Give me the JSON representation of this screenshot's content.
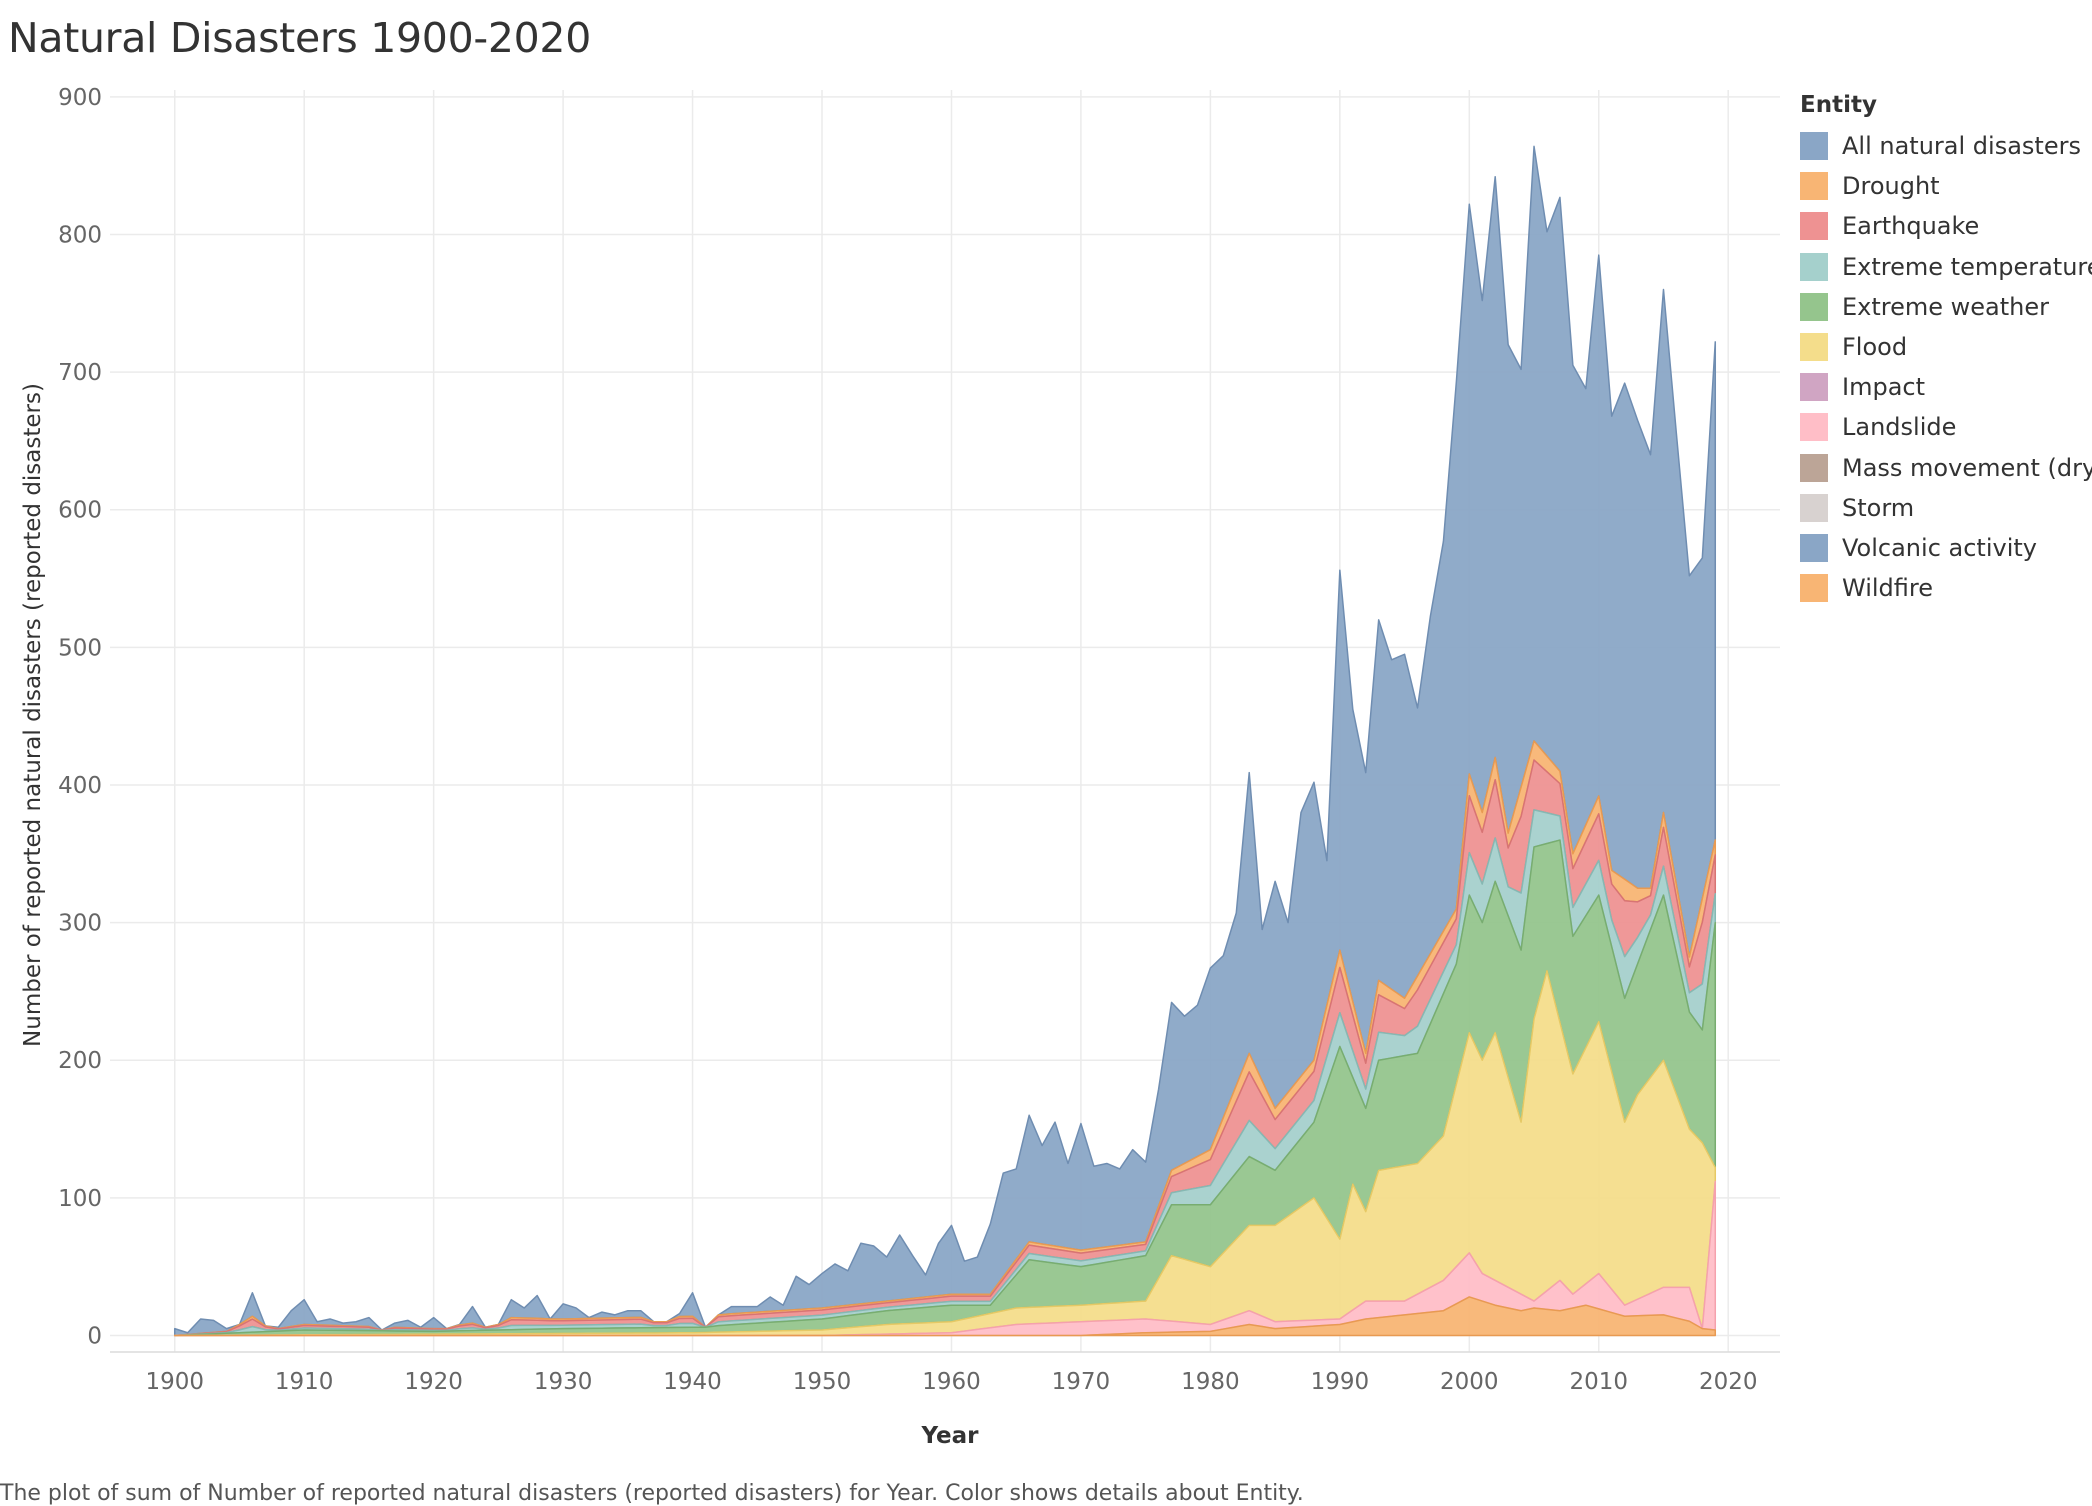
{
  "chart_data": {
    "type": "area",
    "title": "Natural Disasters 1900-2020",
    "xlabel": "Year",
    "ylabel": "Number of reported natural disasters (reported disasters)",
    "caption": "The plot of sum of Number of reported natural disasters (reported disasters) for Year.  Color shows details about Entity.",
    "legend_title": "Entity",
    "legend_position": "right",
    "grid": true,
    "xlim": [
      1895,
      2024
    ],
    "ylim": [
      -12,
      905
    ],
    "x_ticks": [
      1900,
      1910,
      1920,
      1930,
      1940,
      1950,
      1960,
      1970,
      1980,
      1990,
      2000,
      2010,
      2020
    ],
    "y_ticks": [
      0,
      100,
      200,
      300,
      400,
      500,
      600,
      700,
      800,
      900
    ],
    "keypoints": {
      "all_natural_disasters": [
        [
          1900,
          5
        ],
        [
          1901,
          2
        ],
        [
          1902,
          12
        ],
        [
          1903,
          11
        ],
        [
          1904,
          5
        ],
        [
          1905,
          8
        ],
        [
          1906,
          31
        ],
        [
          1907,
          7
        ],
        [
          1908,
          6
        ],
        [
          1909,
          18
        ],
        [
          1910,
          26
        ],
        [
          1911,
          10
        ],
        [
          1912,
          12
        ],
        [
          1913,
          9
        ],
        [
          1914,
          10
        ],
        [
          1915,
          13
        ],
        [
          1916,
          4
        ],
        [
          1917,
          9
        ],
        [
          1918,
          11
        ],
        [
          1919,
          6
        ],
        [
          1920,
          13
        ],
        [
          1921,
          5
        ],
        [
          1922,
          8
        ],
        [
          1923,
          21
        ],
        [
          1924,
          6
        ],
        [
          1925,
          8
        ],
        [
          1926,
          26
        ],
        [
          1927,
          20
        ],
        [
          1928,
          29
        ],
        [
          1929,
          12
        ],
        [
          1930,
          23
        ],
        [
          1931,
          20
        ],
        [
          1932,
          13
        ],
        [
          1933,
          17
        ],
        [
          1934,
          15
        ],
        [
          1935,
          18
        ],
        [
          1936,
          18
        ],
        [
          1937,
          10
        ],
        [
          1938,
          10
        ],
        [
          1939,
          16
        ],
        [
          1940,
          31
        ],
        [
          1941,
          6
        ],
        [
          1942,
          15
        ],
        [
          1943,
          21
        ],
        [
          1944,
          21
        ],
        [
          1945,
          21
        ],
        [
          1946,
          28
        ],
        [
          1947,
          22
        ],
        [
          1948,
          43
        ],
        [
          1949,
          37
        ],
        [
          1950,
          45
        ],
        [
          1951,
          52
        ],
        [
          1952,
          47
        ],
        [
          1953,
          67
        ],
        [
          1954,
          65
        ],
        [
          1955,
          57
        ],
        [
          1956,
          73
        ],
        [
          1957,
          58
        ],
        [
          1958,
          44
        ],
        [
          1959,
          67
        ],
        [
          1960,
          80
        ],
        [
          1961,
          54
        ],
        [
          1962,
          57
        ],
        [
          1963,
          81
        ],
        [
          1964,
          118
        ],
        [
          1965,
          121
        ],
        [
          1966,
          160
        ],
        [
          1967,
          138
        ],
        [
          1968,
          155
        ],
        [
          1969,
          125
        ],
        [
          1970,
          154
        ],
        [
          1971,
          123
        ],
        [
          1972,
          125
        ],
        [
          1973,
          121
        ],
        [
          1974,
          135
        ],
        [
          1975,
          126
        ],
        [
          1976,
          179
        ],
        [
          1977,
          242
        ],
        [
          1978,
          232
        ],
        [
          1979,
          240
        ],
        [
          1980,
          267
        ],
        [
          1981,
          276
        ],
        [
          1982,
          307
        ],
        [
          1983,
          409
        ],
        [
          1984,
          295
        ],
        [
          1985,
          330
        ],
        [
          1986,
          300
        ],
        [
          1987,
          380
        ],
        [
          1988,
          402
        ],
        [
          1989,
          345
        ],
        [
          1990,
          556
        ],
        [
          1991,
          455
        ],
        [
          1992,
          409
        ],
        [
          1993,
          520
        ],
        [
          1994,
          491
        ],
        [
          1995,
          495
        ],
        [
          1996,
          456
        ],
        [
          1997,
          523
        ],
        [
          1998,
          577
        ],
        [
          1999,
          693
        ],
        [
          2000,
          822
        ],
        [
          2001,
          752
        ],
        [
          2002,
          842
        ],
        [
          2003,
          720
        ],
        [
          2004,
          702
        ],
        [
          2005,
          864
        ],
        [
          2006,
          802
        ],
        [
          2007,
          827
        ],
        [
          2008,
          705
        ],
        [
          2009,
          688
        ],
        [
          2010,
          785
        ],
        [
          2011,
          668
        ],
        [
          2012,
          692
        ],
        [
          2013,
          665
        ],
        [
          2014,
          640
        ],
        [
          2015,
          760
        ],
        [
          2016,
          655
        ],
        [
          2017,
          552
        ],
        [
          2018,
          565
        ],
        [
          2019,
          722
        ]
      ],
      "stack_top_of_specific_entities": [
        [
          1900,
          0
        ],
        [
          1904,
          3
        ],
        [
          1906,
          14
        ],
        [
          1908,
          5
        ],
        [
          1910,
          8
        ],
        [
          1920,
          5
        ],
        [
          1926,
          13
        ],
        [
          1930,
          12
        ],
        [
          1940,
          14
        ],
        [
          1950,
          20
        ],
        [
          1955,
          25
        ],
        [
          1960,
          30
        ],
        [
          1963,
          30
        ],
        [
          1966,
          68
        ],
        [
          1970,
          62
        ],
        [
          1975,
          68
        ],
        [
          1977,
          120
        ],
        [
          1980,
          135
        ],
        [
          1983,
          205
        ],
        [
          1985,
          165
        ],
        [
          1988,
          200
        ],
        [
          1990,
          280
        ],
        [
          1992,
          205
        ],
        [
          1993,
          258
        ],
        [
          1995,
          245
        ],
        [
          1999,
          310
        ],
        [
          2000,
          408
        ],
        [
          2001,
          380
        ],
        [
          2002,
          420
        ],
        [
          2003,
          365
        ],
        [
          2005,
          432
        ],
        [
          2007,
          410
        ],
        [
          2008,
          350
        ],
        [
          2010,
          392
        ],
        [
          2011,
          338
        ],
        [
          2013,
          325
        ],
        [
          2014,
          325
        ],
        [
          2015,
          380
        ],
        [
          2017,
          275
        ],
        [
          2019,
          360
        ]
      ],
      "extreme_weather_top": [
        [
          1900,
          0
        ],
        [
          1910,
          4
        ],
        [
          1920,
          3
        ],
        [
          1930,
          5
        ],
        [
          1940,
          6
        ],
        [
          1950,
          12
        ],
        [
          1955,
          18
        ],
        [
          1960,
          22
        ],
        [
          1963,
          22
        ],
        [
          1966,
          55
        ],
        [
          1970,
          50
        ],
        [
          1975,
          58
        ],
        [
          1977,
          95
        ],
        [
          1980,
          95
        ],
        [
          1983,
          130
        ],
        [
          1985,
          120
        ],
        [
          1988,
          155
        ],
        [
          1990,
          210
        ],
        [
          1992,
          165
        ],
        [
          1993,
          200
        ],
        [
          1996,
          205
        ],
        [
          1999,
          270
        ],
        [
          2000,
          320
        ],
        [
          2001,
          300
        ],
        [
          2002,
          330
        ],
        [
          2004,
          280
        ],
        [
          2005,
          355
        ],
        [
          2007,
          360
        ],
        [
          2008,
          290
        ],
        [
          2010,
          320
        ],
        [
          2012,
          245
        ],
        [
          2013,
          270
        ],
        [
          2015,
          320
        ],
        [
          2017,
          235
        ],
        [
          2018,
          222
        ],
        [
          2019,
          300
        ]
      ],
      "flood_top": [
        [
          1900,
          0
        ],
        [
          1920,
          1
        ],
        [
          1940,
          2
        ],
        [
          1950,
          4
        ],
        [
          1955,
          8
        ],
        [
          1960,
          10
        ],
        [
          1965,
          20
        ],
        [
          1970,
          22
        ],
        [
          1975,
          25
        ],
        [
          1977,
          58
        ],
        [
          1980,
          50
        ],
        [
          1983,
          80
        ],
        [
          1985,
          80
        ],
        [
          1988,
          100
        ],
        [
          1990,
          70
        ],
        [
          1991,
          110
        ],
        [
          1992,
          90
        ],
        [
          1993,
          120
        ],
        [
          1996,
          125
        ],
        [
          1998,
          145
        ],
        [
          2000,
          220
        ],
        [
          2001,
          200
        ],
        [
          2002,
          220
        ],
        [
          2004,
          155
        ],
        [
          2005,
          230
        ],
        [
          2006,
          265
        ],
        [
          2008,
          190
        ],
        [
          2010,
          228
        ],
        [
          2012,
          155
        ],
        [
          2013,
          175
        ],
        [
          2015,
          200
        ],
        [
          2017,
          150
        ],
        [
          2018,
          140
        ],
        [
          2019,
          122
        ]
      ],
      "landslide_top": [
        [
          1900,
          0
        ],
        [
          1950,
          0
        ],
        [
          1960,
          2
        ],
        [
          1965,
          8
        ],
        [
          1970,
          10
        ],
        [
          1975,
          12
        ],
        [
          1980,
          8
        ],
        [
          1983,
          18
        ],
        [
          1985,
          10
        ],
        [
          1990,
          12
        ],
        [
          1992,
          25
        ],
        [
          1995,
          25
        ],
        [
          1998,
          40
        ],
        [
          2000,
          60
        ],
        [
          2001,
          45
        ],
        [
          2003,
          35
        ],
        [
          2005,
          25
        ],
        [
          2007,
          40
        ],
        [
          2008,
          30
        ],
        [
          2010,
          45
        ],
        [
          2012,
          22
        ],
        [
          2015,
          35
        ],
        [
          2017,
          35
        ],
        [
          2018,
          5
        ],
        [
          2019,
          112
        ]
      ],
      "drought_top": [
        [
          1900,
          0
        ],
        [
          1970,
          0
        ],
        [
          1975,
          2
        ],
        [
          1980,
          3
        ],
        [
          1983,
          8
        ],
        [
          1985,
          5
        ],
        [
          1990,
          8
        ],
        [
          1992,
          12
        ],
        [
          1995,
          15
        ],
        [
          1998,
          18
        ],
        [
          2000,
          28
        ],
        [
          2002,
          22
        ],
        [
          2004,
          18
        ],
        [
          2005,
          20
        ],
        [
          2007,
          18
        ],
        [
          2009,
          22
        ],
        [
          2012,
          14
        ],
        [
          2015,
          15
        ],
        [
          2018,
          8
        ],
        [
          2019,
          4
        ]
      ]
    }
  },
  "legend": [
    {
      "label": "All natural disasters",
      "color": "#8aa6c6"
    },
    {
      "label": "Drought",
      "color": "#f8b574"
    },
    {
      "label": "Earthquake",
      "color": "#ee9292"
    },
    {
      "label": "Extreme temperature",
      "color": "#a5d0cc"
    },
    {
      "label": "Extreme weather",
      "color": "#95c58d"
    },
    {
      "label": "Flood",
      "color": "#f4dd8b"
    },
    {
      "label": "Impact",
      "color": "#d0a5c3"
    },
    {
      "label": "Landslide",
      "color": "#ffbec7"
    },
    {
      "label": "Mass movement (dry)",
      "color": "#bca597"
    },
    {
      "label": "Storm",
      "color": "#d8d2d0"
    },
    {
      "label": "Volcanic activity",
      "color": "#8aa6c6"
    },
    {
      "label": "Wildfire",
      "color": "#f8b574"
    }
  ]
}
